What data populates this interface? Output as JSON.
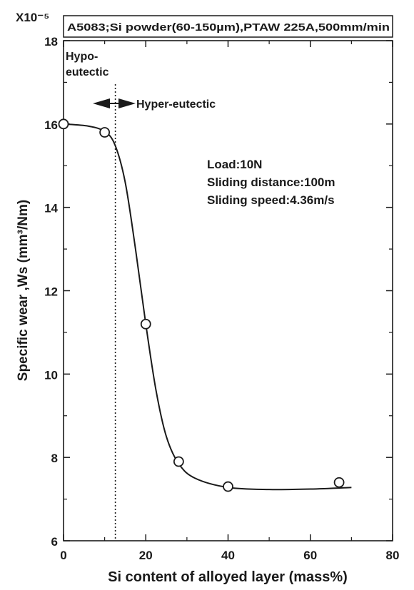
{
  "chart_data": {
    "type": "line",
    "title": "A5083;Si powder(60-150µm),PTAW 225A,500mm/min",
    "xlabel": "Si content of alloyed layer (mass%)",
    "ylabel": "Specific wear ,Ws (mm³/Nm)",
    "y_multiplier": "X10⁻⁵",
    "xlim": [
      0,
      80
    ],
    "ylim": [
      6,
      18
    ],
    "x_ticks": [
      0,
      20,
      40,
      60,
      80
    ],
    "y_ticks": [
      6,
      8,
      10,
      12,
      14,
      16,
      18
    ],
    "grid": false,
    "series": [
      {
        "points": [
          {
            "x": 0,
            "y": 16.0
          },
          {
            "x": 10,
            "y": 15.8
          },
          {
            "x": 20,
            "y": 11.2
          },
          {
            "x": 28,
            "y": 7.9
          },
          {
            "x": 40,
            "y": 7.3
          },
          {
            "x": 67,
            "y": 7.4
          }
        ],
        "fit_curve": [
          {
            "x": 0,
            "y": 16.0
          },
          {
            "x": 6,
            "y": 15.95
          },
          {
            "x": 10,
            "y": 15.82
          },
          {
            "x": 12.5,
            "y": 15.5
          },
          {
            "x": 15,
            "y": 14.6
          },
          {
            "x": 17.5,
            "y": 13.0
          },
          {
            "x": 20,
            "y": 11.2
          },
          {
            "x": 22.5,
            "y": 9.6
          },
          {
            "x": 25,
            "y": 8.5
          },
          {
            "x": 28,
            "y": 7.85
          },
          {
            "x": 32,
            "y": 7.5
          },
          {
            "x": 40,
            "y": 7.28
          },
          {
            "x": 50,
            "y": 7.23
          },
          {
            "x": 60,
            "y": 7.24
          },
          {
            "x": 70,
            "y": 7.28
          }
        ]
      }
    ],
    "reference_line": {
      "x": 12.6,
      "style": "dotted"
    },
    "annotations": {
      "hypo_line1": "Hypo-",
      "hypo_line2": "eutectic",
      "hyper": "Hyper-eutectic",
      "conditions": [
        "Load:10N",
        "Sliding distance:100m",
        "Sliding speed:4.36m/s"
      ]
    }
  }
}
